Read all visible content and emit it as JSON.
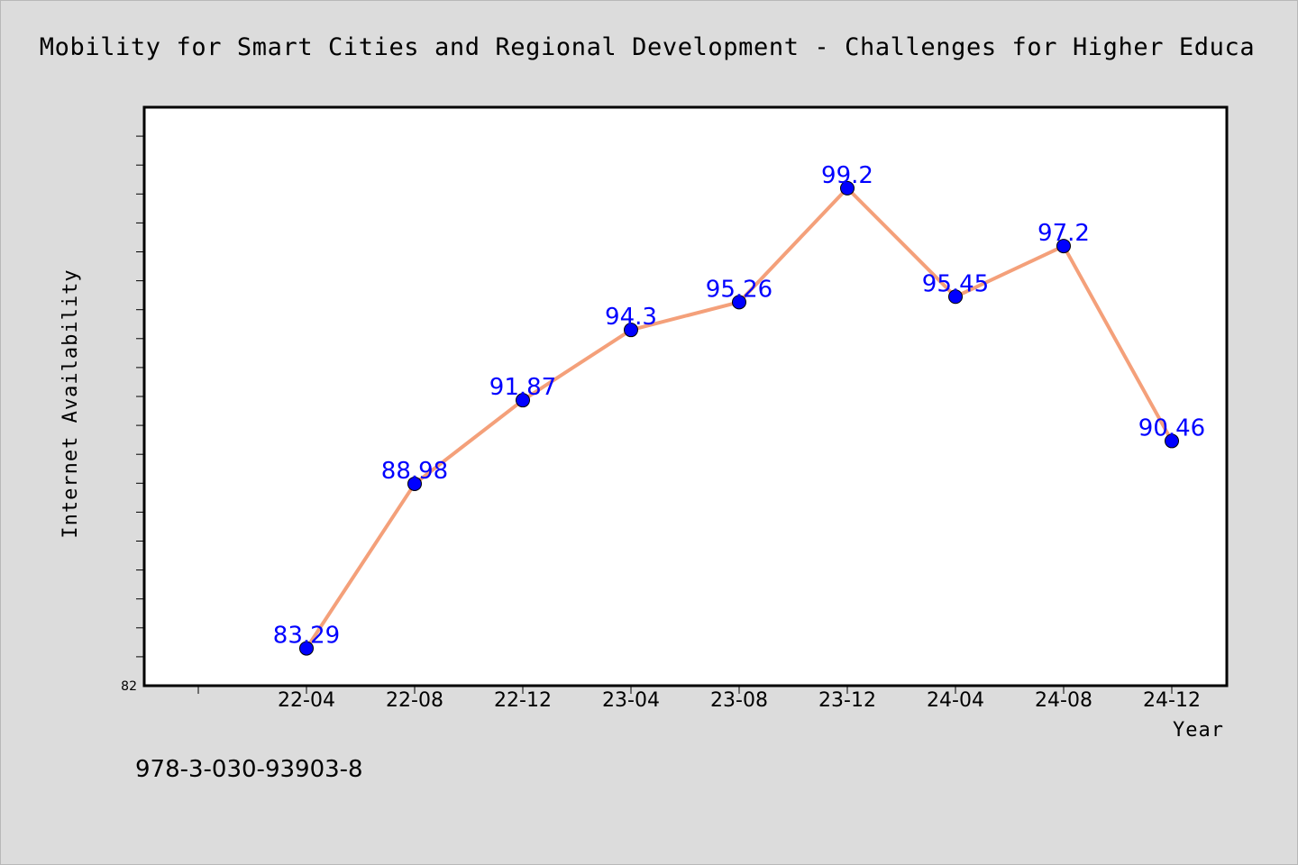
{
  "chart_data": {
    "type": "line",
    "title": "Mobility for Smart Cities and Regional Development - Challenges for Higher Educa",
    "xlabel": "Year",
    "ylabel": "Internet Availability",
    "categories": [
      "22-04",
      "22-08",
      "22-12",
      "23-04",
      "23-08",
      "23-12",
      "24-04",
      "24-08",
      "24-12"
    ],
    "series": [
      {
        "values": [
          83.29,
          88.98,
          91.87,
          94.3,
          95.26,
          99.2,
          95.45,
          97.2,
          90.46
        ],
        "labels": [
          "83.29",
          "88.98",
          "91.87",
          "94.3",
          "95.26",
          "99.2",
          "95.45",
          "97.2",
          "90.46"
        ]
      }
    ],
    "ylim": [
      82,
      102
    ],
    "y_tick_labels": [
      "82"
    ],
    "grid": false,
    "legend": "none",
    "line_color": "#f4a07a",
    "marker_color": "#0000ff",
    "label_color": "#0000ff"
  },
  "footer": {
    "text": "978-3-030-93903-8"
  }
}
